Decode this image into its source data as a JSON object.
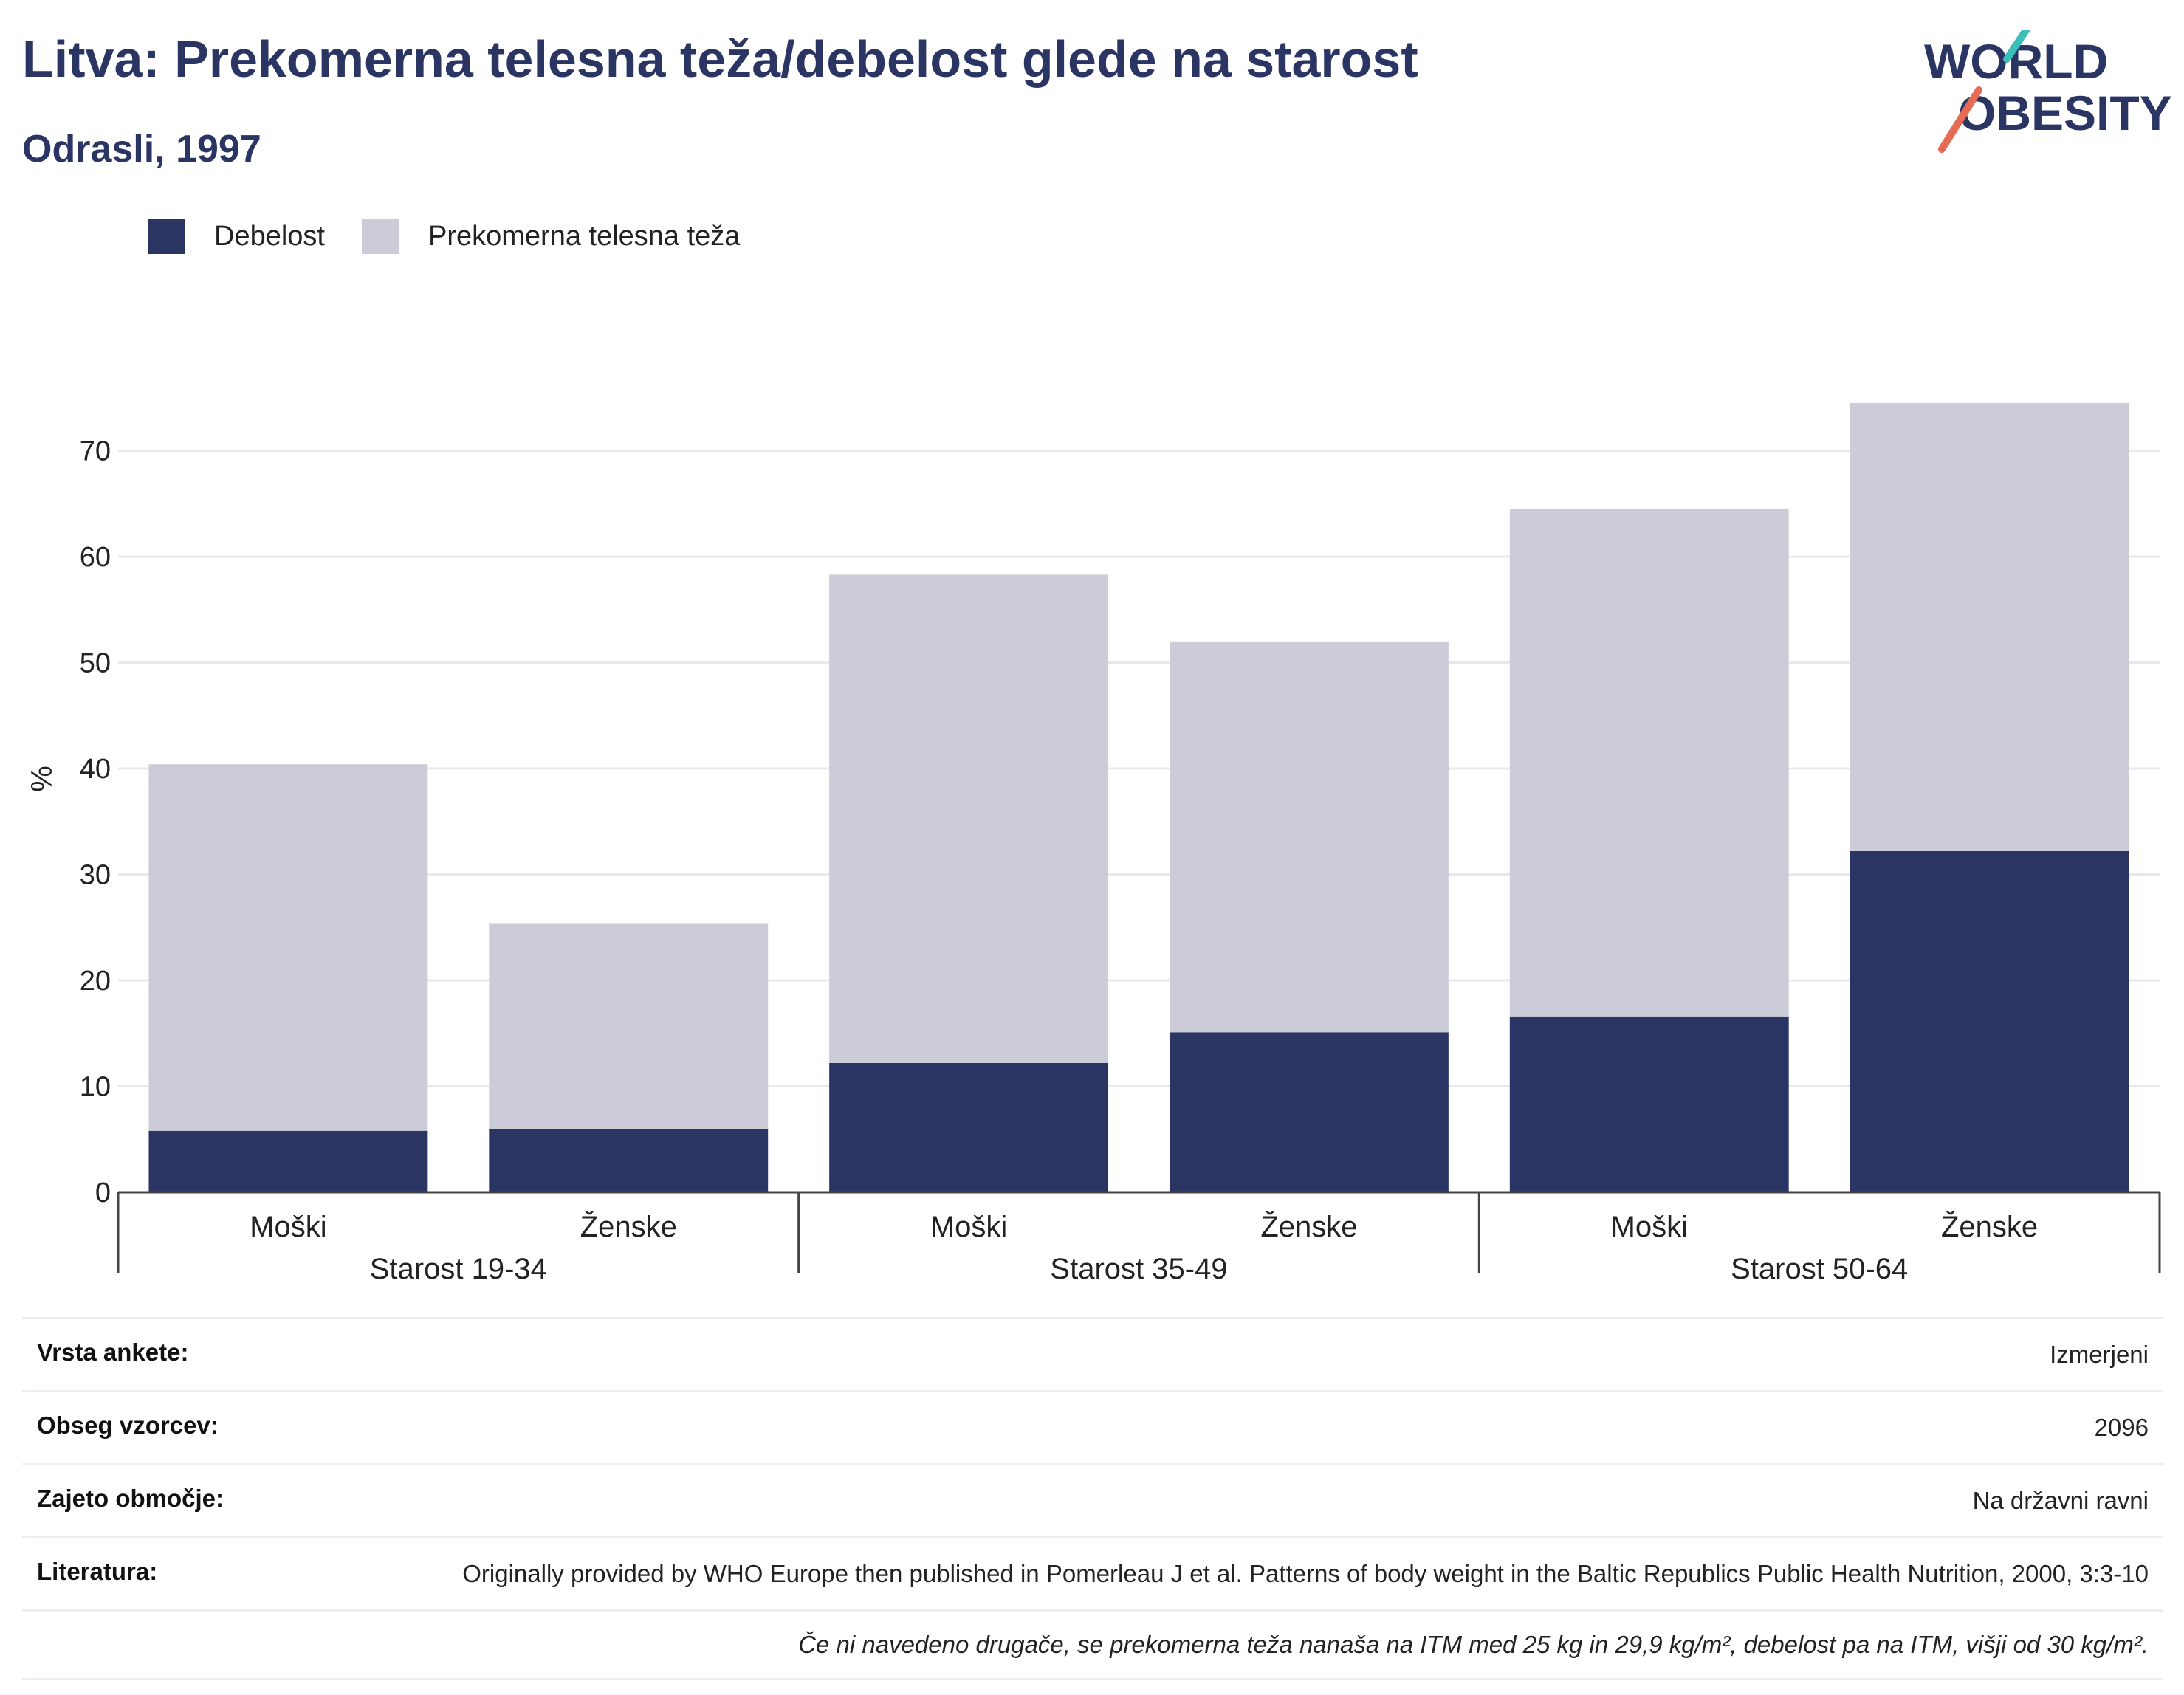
{
  "header": {
    "title": "Litva: Prekomerna telesna teža/debelost glede na starost",
    "subtitle": "Odrasli, 1997"
  },
  "logo": {
    "line1": "WORLD",
    "line2": "OBESITY",
    "accent_teal": "#3bbfb8",
    "accent_red": "#e56b55",
    "text_color": "#2a3564"
  },
  "colors": {
    "obesity": "#2a3564",
    "overweight": "#cbccd8",
    "title": "#2a3564"
  },
  "chart_data": {
    "type": "bar",
    "stacked": true,
    "ylabel": "%",
    "ylim": [
      0,
      75
    ],
    "yticks": [
      0,
      10,
      20,
      30,
      40,
      50,
      60,
      70
    ],
    "grid": true,
    "legend": "top-left",
    "groups": [
      {
        "label": "Starost 19-34",
        "categories": [
          "Moški",
          "Ženske"
        ]
      },
      {
        "label": "Starost 35-49",
        "categories": [
          "Moški",
          "Ženske"
        ]
      },
      {
        "label": "Starost 50-64",
        "categories": [
          "Moški",
          "Ženske"
        ]
      }
    ],
    "series": [
      {
        "name": "Debelost",
        "color": "#2a3564",
        "values": [
          5.8,
          6.0,
          12.2,
          15.1,
          16.6,
          32.2
        ]
      },
      {
        "name": "Prekomerna telesna teža",
        "color": "#cbccd8",
        "values": [
          34.6,
          19.4,
          46.1,
          36.9,
          47.9,
          42.3
        ]
      }
    ]
  },
  "info": [
    {
      "key": "Vrsta ankete:",
      "value": "Izmerjeni"
    },
    {
      "key": "Obseg vzorcev:",
      "value": "2096"
    },
    {
      "key": "Zajeto območje:",
      "value": "Na državni ravni"
    },
    {
      "key": "Literatura:",
      "value": "Originally provided by WHO Europe then published in Pomerleau J et al. Patterns of body weight in the Baltic Republics Public Health Nutrition, 2000, 3:3-10"
    }
  ],
  "footnote": "Če ni navedeno drugače, se prekomerna teža nanaša na ITM med 25 kg in 29,9 kg/m², debelost pa na ITM, višji od 30 kg/m²."
}
